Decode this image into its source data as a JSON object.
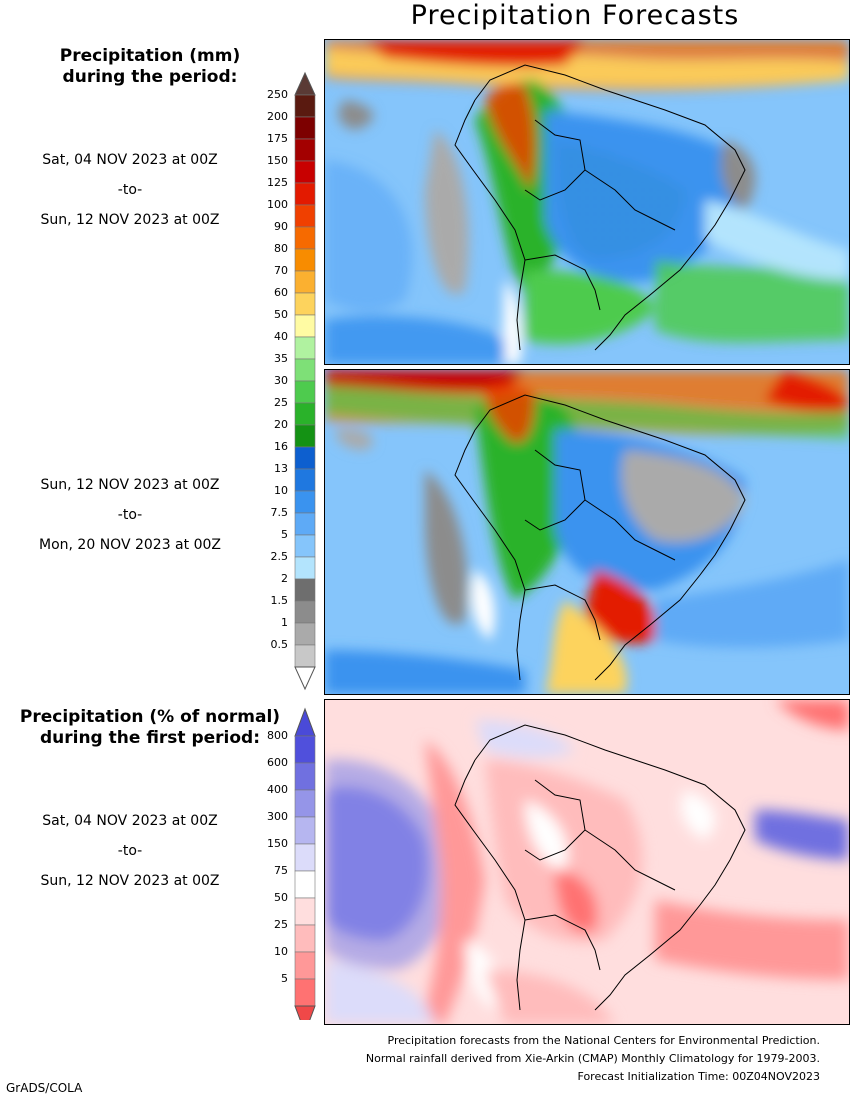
{
  "title": "Precipitation Forecasts",
  "precip_legend": {
    "header_line1": "Precipitation (mm)",
    "header_line2": "during the period:",
    "levels": [
      "250",
      "200",
      "175",
      "150",
      "125",
      "100",
      "90",
      "80",
      "70",
      "60",
      "50",
      "40",
      "35",
      "30",
      "25",
      "20",
      "16",
      "13",
      "10",
      "7.5",
      "5",
      "2.5",
      "2",
      "1.5",
      "1",
      "0.5"
    ],
    "colors": [
      "#5a1a10",
      "#7d0000",
      "#a30000",
      "#c80000",
      "#e31a00",
      "#f04000",
      "#f66a00",
      "#f88c00",
      "#fbb030",
      "#fdd35d",
      "#fffba3",
      "#b0f2a0",
      "#7ee077",
      "#4ecb4e",
      "#2ab22a",
      "#149214",
      "#0d5fcf",
      "#1f78e0",
      "#3a93ef",
      "#5eaaf6",
      "#85c5fb",
      "#b3e4fd",
      "#6e6e6e",
      "#8c8c8c",
      "#aaaaaa",
      "#c8c8c8"
    ],
    "top_arrow_color": "#5a3a35",
    "bottom_arrow_color": "#ffffff"
  },
  "period1": {
    "start": "Sat, 04 NOV 2023 at 00Z",
    "sep": "-to-",
    "end": "Sun, 12 NOV 2023 at 00Z"
  },
  "period2": {
    "start": "Sun, 12 NOV 2023 at 00Z",
    "sep": "-to-",
    "end": "Mon, 20 NOV 2023 at 00Z"
  },
  "anomaly_legend": {
    "header_line1": "Precipitation (% of normal)",
    "header_line2": "during the first period:",
    "levels": [
      "800",
      "600",
      "400",
      "300",
      "150",
      "75",
      "50",
      "25",
      "10",
      "5"
    ],
    "colors": [
      "#5050dc",
      "#7070e0",
      "#9595e8",
      "#b6b6f0",
      "#dcdcfa",
      "#ffffff",
      "#ffdede",
      "#ffbcbc",
      "#ff9898",
      "#ff7272"
    ],
    "top_arrow_color": "#4a4ad8",
    "bottom_arrow_color": "#f04848"
  },
  "period3": {
    "start": "Sat, 04 NOV 2023 at 00Z",
    "sep": "-to-",
    "end": "Sun, 12 NOV 2023 at 00Z"
  },
  "footer": {
    "line1": "Precipitation forecasts from the National Centers for Environmental Prediction.",
    "line2": "Normal rainfall derived from Xie-Arkin (CMAP) Monthly Climatology for 1979-2003.",
    "line3": "Forecast Initialization Time: 00Z04NOV2023"
  },
  "credit": "GrADS/COLA"
}
